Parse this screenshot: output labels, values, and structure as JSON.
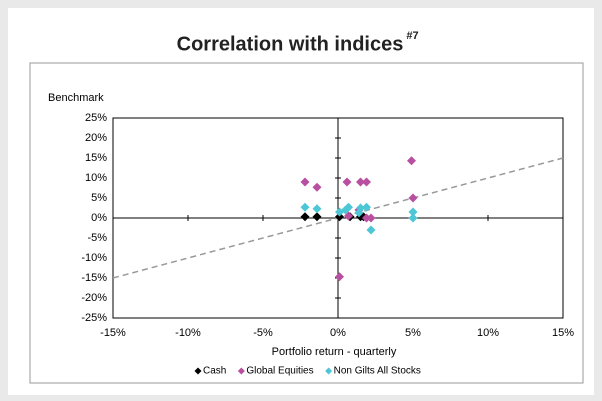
{
  "chart_data": {
    "type": "scatter",
    "title": "Correlation with indices",
    "title_note": "#7",
    "ylabel": "Benchmark",
    "xlabel": "Portfolio return - quarterly",
    "xlim": [
      -15,
      15
    ],
    "ylim": [
      -25,
      25
    ],
    "xticks": [
      {
        "value": -15,
        "label": "-15%"
      },
      {
        "value": -10,
        "label": "-10%"
      },
      {
        "value": -5,
        "label": "-5%"
      },
      {
        "value": 0,
        "label": "0%"
      },
      {
        "value": 5,
        "label": "5%"
      },
      {
        "value": 10,
        "label": "10%"
      },
      {
        "value": 15,
        "label": "15%"
      }
    ],
    "yticks": [
      {
        "value": 25,
        "label": "25%"
      },
      {
        "value": 20,
        "label": "20%"
      },
      {
        "value": 15,
        "label": "15%"
      },
      {
        "value": 10,
        "label": "10%"
      },
      {
        "value": 5,
        "label": "5%"
      },
      {
        "value": 0,
        "label": "0%"
      },
      {
        "value": -5,
        "label": "-5%"
      },
      {
        "value": -10,
        "label": "-10%"
      },
      {
        "value": -15,
        "label": "-15%"
      },
      {
        "value": -20,
        "label": "-20%"
      },
      {
        "value": -25,
        "label": "-25%"
      }
    ],
    "diagonal": true,
    "legend": "bottom",
    "series": [
      {
        "name": "Cash",
        "color": "#000000",
        "x": [
          -2.2,
          -1.4,
          0.1,
          0.8,
          1.5,
          1.7
        ],
        "values": [
          0.3,
          0.3,
          0.3,
          0.3,
          0.3,
          0.3
        ]
      },
      {
        "name": "Global Equities",
        "color": "#b94fa0",
        "x": [
          -2.2,
          -1.4,
          0.6,
          1.5,
          1.9,
          4.9,
          5.0,
          0.1,
          0.7,
          1.4,
          1.9,
          2.2
        ],
        "values": [
          9,
          7.7,
          9,
          9,
          9,
          14.3,
          5,
          -14.7,
          0.5,
          2,
          0,
          0
        ]
      },
      {
        "name": "Non Gilts All Stocks",
        "color": "#4dc6d6",
        "x": [
          -2.2,
          -1.4,
          0.1,
          0.5,
          0.7,
          1.5,
          1.9,
          2.2,
          5.0,
          5.0,
          1.4
        ],
        "values": [
          2.7,
          2.3,
          1.5,
          2,
          2.7,
          2.5,
          2.7,
          -3,
          1.5,
          0,
          1.3
        ]
      }
    ]
  }
}
